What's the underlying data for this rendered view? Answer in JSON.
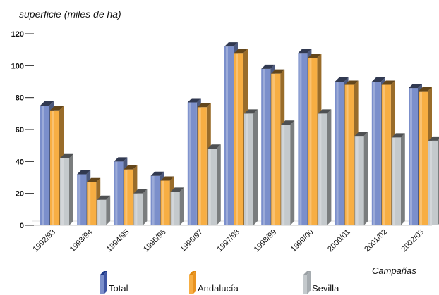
{
  "chart_data": {
    "type": "bar",
    "ylabel": "superficie (miles de ha)",
    "xlabel": "Campañas",
    "categories": [
      "1992/93",
      "1993/94",
      "1994/95",
      "1995/96",
      "1996/97",
      "1997/98",
      "1998/99",
      "1999/00",
      "2000/01",
      "2001/02",
      "2002/03"
    ],
    "series": [
      {
        "name": "Total",
        "color": "#7b8fcb",
        "values": [
          75,
          32,
          40,
          31,
          77,
          112,
          98,
          108,
          90,
          90,
          86
        ]
      },
      {
        "name": "Andalucía",
        "color": "#f7ae43",
        "values": [
          72,
          27,
          35,
          28,
          74,
          108,
          95,
          105,
          88,
          88,
          84
        ]
      },
      {
        "name": "Sevilla",
        "color": "#c4c9cc",
        "values": [
          42,
          16,
          20,
          21,
          48,
          70,
          63,
          70,
          56,
          55,
          53
        ]
      }
    ],
    "ylim": [
      0,
      120
    ],
    "yticks": [
      0,
      20,
      40,
      60,
      80,
      100,
      120
    ],
    "legend_position": "bottom",
    "grid": false
  }
}
